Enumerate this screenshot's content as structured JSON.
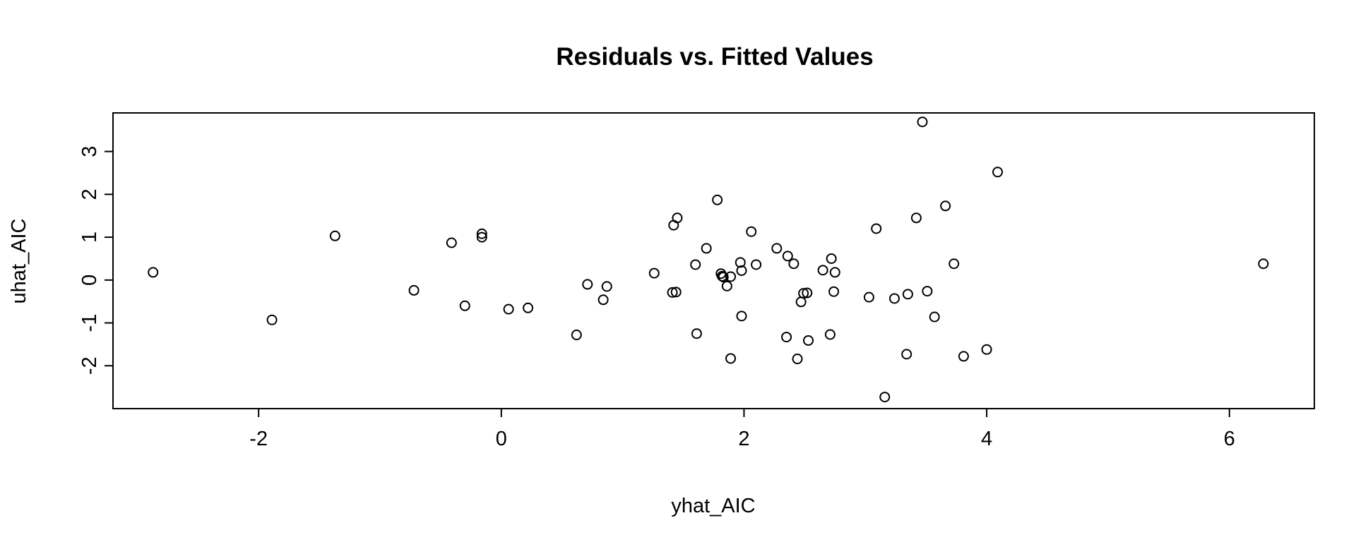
{
  "chart_data": {
    "type": "scatter",
    "title": "Residuals vs. Fitted Values",
    "xlabel": "yhat_AIC",
    "ylabel": "uhat_AIC",
    "xlim": [
      -3.2,
      6.7
    ],
    "ylim": [
      -3.0,
      3.9
    ],
    "x_ticks": [
      -2,
      0,
      2,
      4,
      6
    ],
    "y_ticks": [
      -2,
      -1,
      0,
      1,
      2,
      3
    ],
    "x_tick_labels": [
      "-2",
      "0",
      "2",
      "4",
      "6"
    ],
    "y_tick_labels": [
      "-2",
      "-1",
      "0",
      "1",
      "2",
      "3"
    ],
    "grid": false,
    "legend": "none",
    "marker": "open-circle",
    "points": [
      {
        "x": -2.87,
        "y": 0.18
      },
      {
        "x": -1.89,
        "y": -0.93
      },
      {
        "x": -1.37,
        "y": 1.03
      },
      {
        "x": -0.72,
        "y": -0.24
      },
      {
        "x": -0.41,
        "y": 0.87
      },
      {
        "x": -0.3,
        "y": -0.6
      },
      {
        "x": -0.16,
        "y": 1.08
      },
      {
        "x": -0.16,
        "y": 1.0
      },
      {
        "x": 0.06,
        "y": -0.68
      },
      {
        "x": 0.22,
        "y": -0.65
      },
      {
        "x": 0.62,
        "y": -1.28
      },
      {
        "x": 0.71,
        "y": -0.1
      },
      {
        "x": 0.84,
        "y": -0.46
      },
      {
        "x": 0.87,
        "y": -0.15
      },
      {
        "x": 1.26,
        "y": 0.16
      },
      {
        "x": 1.41,
        "y": -0.29
      },
      {
        "x": 1.42,
        "y": 1.28
      },
      {
        "x": 1.44,
        "y": -0.28
      },
      {
        "x": 1.45,
        "y": 1.45
      },
      {
        "x": 1.6,
        "y": 0.36
      },
      {
        "x": 1.61,
        "y": -1.25
      },
      {
        "x": 1.69,
        "y": 0.74
      },
      {
        "x": 1.78,
        "y": 1.87
      },
      {
        "x": 1.81,
        "y": 0.15
      },
      {
        "x": 1.82,
        "y": 0.09
      },
      {
        "x": 1.83,
        "y": 0.07
      },
      {
        "x": 1.86,
        "y": -0.14
      },
      {
        "x": 1.89,
        "y": 0.08
      },
      {
        "x": 1.89,
        "y": -1.83
      },
      {
        "x": 1.97,
        "y": 0.41
      },
      {
        "x": 1.98,
        "y": 0.22
      },
      {
        "x": 1.98,
        "y": -0.84
      },
      {
        "x": 2.06,
        "y": 1.13
      },
      {
        "x": 2.1,
        "y": 0.36
      },
      {
        "x": 2.27,
        "y": 0.74
      },
      {
        "x": 2.35,
        "y": -1.33
      },
      {
        "x": 2.36,
        "y": 0.56
      },
      {
        "x": 2.41,
        "y": 0.38
      },
      {
        "x": 2.44,
        "y": -1.84
      },
      {
        "x": 2.47,
        "y": -0.51
      },
      {
        "x": 2.49,
        "y": -0.31
      },
      {
        "x": 2.52,
        "y": -0.3
      },
      {
        "x": 2.53,
        "y": -1.41
      },
      {
        "x": 2.65,
        "y": 0.23
      },
      {
        "x": 2.71,
        "y": -1.27
      },
      {
        "x": 2.72,
        "y": 0.5
      },
      {
        "x": 2.74,
        "y": -0.27
      },
      {
        "x": 2.75,
        "y": 0.18
      },
      {
        "x": 3.03,
        "y": -0.4
      },
      {
        "x": 3.09,
        "y": 1.2
      },
      {
        "x": 3.16,
        "y": -2.73
      },
      {
        "x": 3.24,
        "y": -0.43
      },
      {
        "x": 3.34,
        "y": -1.73
      },
      {
        "x": 3.35,
        "y": -0.33
      },
      {
        "x": 3.42,
        "y": 1.45
      },
      {
        "x": 3.47,
        "y": 3.69
      },
      {
        "x": 3.51,
        "y": -0.26
      },
      {
        "x": 3.57,
        "y": -0.86
      },
      {
        "x": 3.66,
        "y": 1.73
      },
      {
        "x": 3.73,
        "y": 0.38
      },
      {
        "x": 3.81,
        "y": -1.78
      },
      {
        "x": 4.0,
        "y": -1.62
      },
      {
        "x": 4.09,
        "y": 2.52
      },
      {
        "x": 6.28,
        "y": 0.38
      }
    ]
  }
}
